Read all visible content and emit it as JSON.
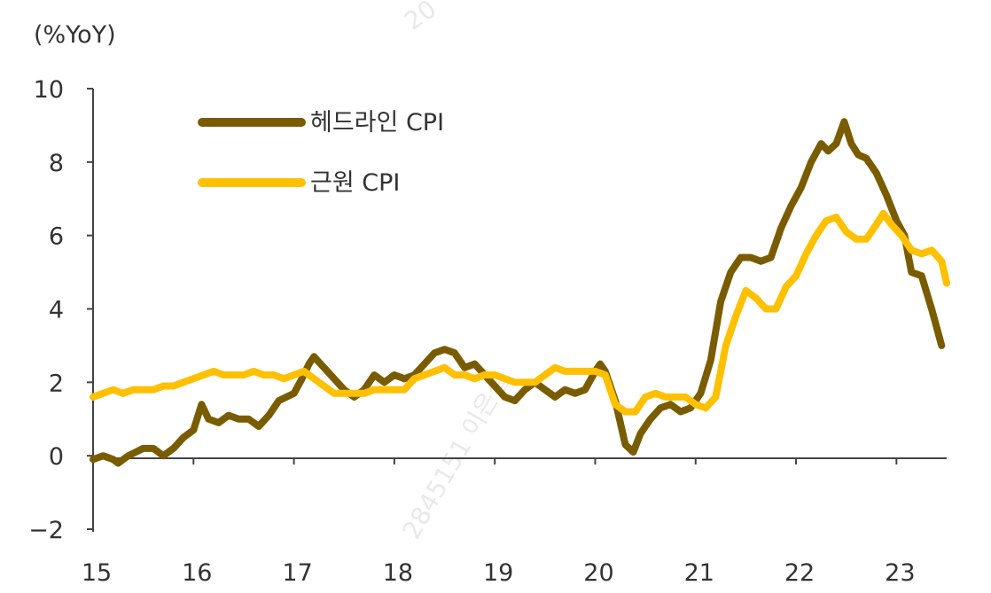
{
  "chart_data": {
    "type": "line",
    "unit_label": "(%YoY)",
    "watermark": [
      "20",
      "2845151 이은실"
    ],
    "ylim": [
      -2,
      10
    ],
    "yticks": [
      -2,
      0,
      2,
      4,
      6,
      8,
      10
    ],
    "xlim": [
      2015,
      2023.5
    ],
    "xticks": [
      2015,
      2016,
      2017,
      2018,
      2019,
      2020,
      2021,
      2022,
      2023
    ],
    "xtick_labels": [
      "15",
      "16",
      "17",
      "18",
      "19",
      "20",
      "21",
      "22",
      "23"
    ],
    "legend_position": "top-left",
    "grid": false,
    "series": [
      {
        "name": "헤드라인 CPI",
        "color": "#7a5c00",
        "points": [
          [
            2015.0,
            -0.1
          ],
          [
            2015.1,
            0.0
          ],
          [
            2015.2,
            -0.1
          ],
          [
            2015.25,
            -0.2
          ],
          [
            2015.35,
            0.0
          ],
          [
            2015.5,
            0.2
          ],
          [
            2015.6,
            0.2
          ],
          [
            2015.7,
            0.0
          ],
          [
            2015.8,
            0.2
          ],
          [
            2015.9,
            0.5
          ],
          [
            2016.0,
            0.7
          ],
          [
            2016.08,
            1.4
          ],
          [
            2016.15,
            1.0
          ],
          [
            2016.25,
            0.9
          ],
          [
            2016.35,
            1.1
          ],
          [
            2016.45,
            1.0
          ],
          [
            2016.55,
            1.0
          ],
          [
            2016.65,
            0.8
          ],
          [
            2016.75,
            1.1
          ],
          [
            2016.85,
            1.5
          ],
          [
            2017.0,
            1.7
          ],
          [
            2017.08,
            2.1
          ],
          [
            2017.15,
            2.5
          ],
          [
            2017.2,
            2.7
          ],
          [
            2017.3,
            2.4
          ],
          [
            2017.4,
            2.1
          ],
          [
            2017.5,
            1.8
          ],
          [
            2017.6,
            1.6
          ],
          [
            2017.7,
            1.8
          ],
          [
            2017.8,
            2.2
          ],
          [
            2017.9,
            2.0
          ],
          [
            2018.0,
            2.2
          ],
          [
            2018.1,
            2.1
          ],
          [
            2018.2,
            2.2
          ],
          [
            2018.3,
            2.5
          ],
          [
            2018.4,
            2.8
          ],
          [
            2018.5,
            2.9
          ],
          [
            2018.6,
            2.8
          ],
          [
            2018.7,
            2.4
          ],
          [
            2018.8,
            2.5
          ],
          [
            2018.9,
            2.2
          ],
          [
            2019.0,
            1.9
          ],
          [
            2019.1,
            1.6
          ],
          [
            2019.2,
            1.5
          ],
          [
            2019.3,
            1.8
          ],
          [
            2019.4,
            2.0
          ],
          [
            2019.5,
            1.8
          ],
          [
            2019.6,
            1.6
          ],
          [
            2019.7,
            1.8
          ],
          [
            2019.8,
            1.7
          ],
          [
            2019.9,
            1.8
          ],
          [
            2020.0,
            2.3
          ],
          [
            2020.05,
            2.5
          ],
          [
            2020.1,
            2.3
          ],
          [
            2020.2,
            1.5
          ],
          [
            2020.3,
            0.3
          ],
          [
            2020.38,
            0.1
          ],
          [
            2020.45,
            0.6
          ],
          [
            2020.55,
            1.0
          ],
          [
            2020.65,
            1.3
          ],
          [
            2020.75,
            1.4
          ],
          [
            2020.85,
            1.2
          ],
          [
            2020.95,
            1.3
          ],
          [
            2021.05,
            1.7
          ],
          [
            2021.15,
            2.6
          ],
          [
            2021.25,
            4.2
          ],
          [
            2021.35,
            5.0
          ],
          [
            2021.45,
            5.4
          ],
          [
            2021.55,
            5.4
          ],
          [
            2021.65,
            5.3
          ],
          [
            2021.75,
            5.4
          ],
          [
            2021.85,
            6.2
          ],
          [
            2021.95,
            6.8
          ],
          [
            2022.05,
            7.3
          ],
          [
            2022.15,
            8.0
          ],
          [
            2022.25,
            8.5
          ],
          [
            2022.32,
            8.3
          ],
          [
            2022.4,
            8.5
          ],
          [
            2022.48,
            9.1
          ],
          [
            2022.55,
            8.5
          ],
          [
            2022.62,
            8.2
          ],
          [
            2022.7,
            8.1
          ],
          [
            2022.8,
            7.7
          ],
          [
            2022.9,
            7.1
          ],
          [
            2023.0,
            6.4
          ],
          [
            2023.08,
            6.0
          ],
          [
            2023.15,
            5.0
          ],
          [
            2023.25,
            4.9
          ],
          [
            2023.35,
            4.0
          ],
          [
            2023.45,
            3.0
          ]
        ]
      },
      {
        "name": "근원 CPI",
        "color": "#ffc000",
        "points": [
          [
            2015.0,
            1.6
          ],
          [
            2015.1,
            1.7
          ],
          [
            2015.2,
            1.8
          ],
          [
            2015.3,
            1.7
          ],
          [
            2015.4,
            1.8
          ],
          [
            2015.5,
            1.8
          ],
          [
            2015.6,
            1.8
          ],
          [
            2015.7,
            1.9
          ],
          [
            2015.8,
            1.9
          ],
          [
            2015.9,
            2.0
          ],
          [
            2016.0,
            2.1
          ],
          [
            2016.1,
            2.2
          ],
          [
            2016.2,
            2.3
          ],
          [
            2016.3,
            2.2
          ],
          [
            2016.4,
            2.2
          ],
          [
            2016.5,
            2.2
          ],
          [
            2016.6,
            2.3
          ],
          [
            2016.7,
            2.2
          ],
          [
            2016.8,
            2.2
          ],
          [
            2016.9,
            2.1
          ],
          [
            2017.0,
            2.2
          ],
          [
            2017.1,
            2.3
          ],
          [
            2017.2,
            2.1
          ],
          [
            2017.3,
            1.9
          ],
          [
            2017.4,
            1.7
          ],
          [
            2017.5,
            1.7
          ],
          [
            2017.6,
            1.7
          ],
          [
            2017.7,
            1.7
          ],
          [
            2017.8,
            1.8
          ],
          [
            2017.9,
            1.8
          ],
          [
            2018.0,
            1.8
          ],
          [
            2018.1,
            1.8
          ],
          [
            2018.2,
            2.1
          ],
          [
            2018.3,
            2.2
          ],
          [
            2018.4,
            2.3
          ],
          [
            2018.5,
            2.4
          ],
          [
            2018.6,
            2.2
          ],
          [
            2018.7,
            2.2
          ],
          [
            2018.8,
            2.1
          ],
          [
            2018.9,
            2.2
          ],
          [
            2019.0,
            2.2
          ],
          [
            2019.1,
            2.1
          ],
          [
            2019.2,
            2.0
          ],
          [
            2019.3,
            2.0
          ],
          [
            2019.4,
            2.0
          ],
          [
            2019.5,
            2.2
          ],
          [
            2019.6,
            2.4
          ],
          [
            2019.7,
            2.3
          ],
          [
            2019.8,
            2.3
          ],
          [
            2019.9,
            2.3
          ],
          [
            2020.0,
            2.3
          ],
          [
            2020.1,
            2.2
          ],
          [
            2020.2,
            1.4
          ],
          [
            2020.3,
            1.2
          ],
          [
            2020.4,
            1.2
          ],
          [
            2020.5,
            1.6
          ],
          [
            2020.6,
            1.7
          ],
          [
            2020.7,
            1.6
          ],
          [
            2020.8,
            1.6
          ],
          [
            2020.9,
            1.6
          ],
          [
            2021.0,
            1.4
          ],
          [
            2021.1,
            1.3
          ],
          [
            2021.2,
            1.6
          ],
          [
            2021.3,
            3.0
          ],
          [
            2021.4,
            3.8
          ],
          [
            2021.5,
            4.5
          ],
          [
            2021.6,
            4.3
          ],
          [
            2021.7,
            4.0
          ],
          [
            2021.8,
            4.0
          ],
          [
            2021.9,
            4.6
          ],
          [
            2022.0,
            4.9
          ],
          [
            2022.1,
            5.5
          ],
          [
            2022.2,
            6.0
          ],
          [
            2022.3,
            6.4
          ],
          [
            2022.4,
            6.5
          ],
          [
            2022.5,
            6.1
          ],
          [
            2022.6,
            5.9
          ],
          [
            2022.7,
            5.9
          ],
          [
            2022.8,
            6.3
          ],
          [
            2022.87,
            6.6
          ],
          [
            2022.95,
            6.3
          ],
          [
            2023.05,
            6.0
          ],
          [
            2023.15,
            5.6
          ],
          [
            2023.25,
            5.5
          ],
          [
            2023.35,
            5.6
          ],
          [
            2023.45,
            5.3
          ],
          [
            2023.5,
            4.7
          ]
        ]
      }
    ]
  }
}
